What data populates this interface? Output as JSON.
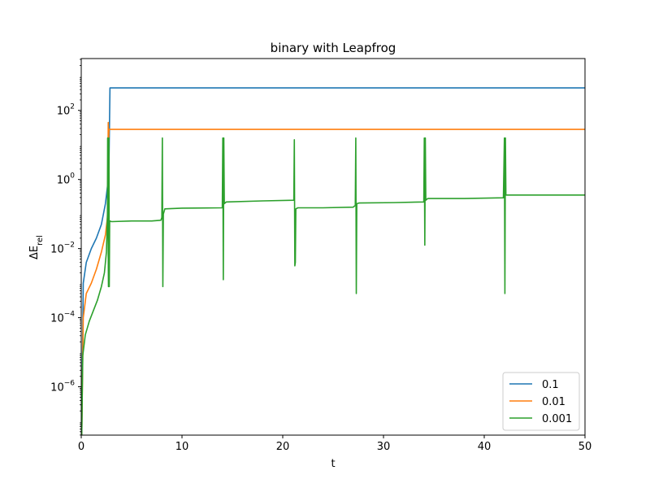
{
  "chart_data": {
    "type": "line",
    "title": "binary with Leapfrog",
    "xlabel": "t",
    "ylabel": "ΔE",
    "ylabel_subscript": "rel",
    "xlim": [
      0,
      50
    ],
    "ylim_log10": [
      -7.4,
      3.5
    ],
    "yscale": "log",
    "grid": false,
    "legend_placement": "lower-right",
    "x_ticks": [
      0,
      10,
      20,
      30,
      40,
      50
    ],
    "y_ticks": [
      {
        "exp": -6,
        "base": "10",
        "sup": "−6"
      },
      {
        "exp": -4,
        "base": "10",
        "sup": "−4"
      },
      {
        "exp": -2,
        "base": "10",
        "sup": "−2"
      },
      {
        "exp": 0,
        "base": "10",
        "sup": "0"
      },
      {
        "exp": 2,
        "base": "10",
        "sup": "2"
      }
    ],
    "series": [
      {
        "name": "0.1",
        "color": "#1f77b4",
        "points": [
          [
            0.05,
            -7.4
          ],
          [
            0.2,
            -3.0
          ],
          [
            0.5,
            -2.4
          ],
          [
            1.0,
            -2.0
          ],
          [
            1.5,
            -1.7
          ],
          [
            2.0,
            -1.3
          ],
          [
            2.4,
            -0.7
          ],
          [
            2.6,
            -0.2
          ],
          [
            2.75,
            0.4
          ],
          [
            2.85,
            2.65
          ],
          [
            5,
            2.65
          ],
          [
            20,
            2.65
          ],
          [
            35,
            2.65
          ],
          [
            50,
            2.65
          ]
        ]
      },
      {
        "name": "0.01",
        "color": "#ff7f0e",
        "points": [
          [
            0.05,
            -7.4
          ],
          [
            0.2,
            -4.0
          ],
          [
            0.5,
            -3.3
          ],
          [
            1.0,
            -3.0
          ],
          [
            1.5,
            -2.6
          ],
          [
            2.0,
            -2.1
          ],
          [
            2.4,
            -1.6
          ],
          [
            2.6,
            -1.1
          ],
          [
            2.68,
            1.65
          ],
          [
            2.72,
            1.2
          ],
          [
            2.75,
            1.45
          ],
          [
            10,
            1.45
          ],
          [
            30,
            1.45
          ],
          [
            50,
            1.45
          ]
        ]
      },
      {
        "name": "0.001",
        "color": "#2ca02c",
        "points": [
          [
            0.05,
            -7.4
          ],
          [
            0.15,
            -5.1
          ],
          [
            0.4,
            -4.5
          ],
          [
            0.8,
            -4.1
          ],
          [
            1.2,
            -3.8
          ],
          [
            1.6,
            -3.5
          ],
          [
            2.0,
            -3.1
          ],
          [
            2.3,
            -2.7
          ],
          [
            2.5,
            -2.1
          ],
          [
            2.6,
            -1.0
          ],
          [
            2.62,
            1.2
          ],
          [
            2.64,
            -0.5
          ],
          [
            2.7,
            -3.1
          ],
          [
            2.75,
            1.2
          ],
          [
            2.78,
            -3.1
          ],
          [
            2.82,
            -1.2
          ],
          [
            3.0,
            -1.22
          ],
          [
            5,
            -1.2
          ],
          [
            7,
            -1.2
          ],
          [
            7.9,
            -1.18
          ],
          [
            8.0,
            -1.1
          ],
          [
            8.05,
            1.2
          ],
          [
            8.1,
            -3.1
          ],
          [
            8.15,
            -1.0
          ],
          [
            8.3,
            -0.85
          ],
          [
            10,
            -0.83
          ],
          [
            14,
            -0.82
          ],
          [
            14.05,
            1.2
          ],
          [
            14.1,
            -2.9
          ],
          [
            14.15,
            1.2
          ],
          [
            14.2,
            -0.7
          ],
          [
            14.4,
            -0.65
          ],
          [
            18,
            -0.62
          ],
          [
            21.1,
            -0.6
          ],
          [
            21.15,
            1.15
          ],
          [
            21.2,
            -2.5
          ],
          [
            21.25,
            -2.4
          ],
          [
            21.3,
            -0.85
          ],
          [
            21.5,
            -0.82
          ],
          [
            24,
            -0.82
          ],
          [
            27,
            -0.8
          ],
          [
            27.2,
            -0.75
          ],
          [
            27.25,
            1.2
          ],
          [
            27.3,
            -3.3
          ],
          [
            27.35,
            -0.7
          ],
          [
            27.6,
            -0.68
          ],
          [
            31,
            -0.67
          ],
          [
            34.0,
            -0.65
          ],
          [
            34.05,
            1.2
          ],
          [
            34.1,
            -1.9
          ],
          [
            34.15,
            1.2
          ],
          [
            34.2,
            -0.6
          ],
          [
            34.4,
            -0.55
          ],
          [
            38,
            -0.55
          ],
          [
            41.9,
            -0.53
          ],
          [
            42.0,
            1.2
          ],
          [
            42.05,
            -3.3
          ],
          [
            42.1,
            1.2
          ],
          [
            42.15,
            -0.45
          ],
          [
            42.3,
            -0.45
          ],
          [
            46,
            -0.45
          ],
          [
            50,
            -0.45
          ]
        ]
      }
    ]
  }
}
